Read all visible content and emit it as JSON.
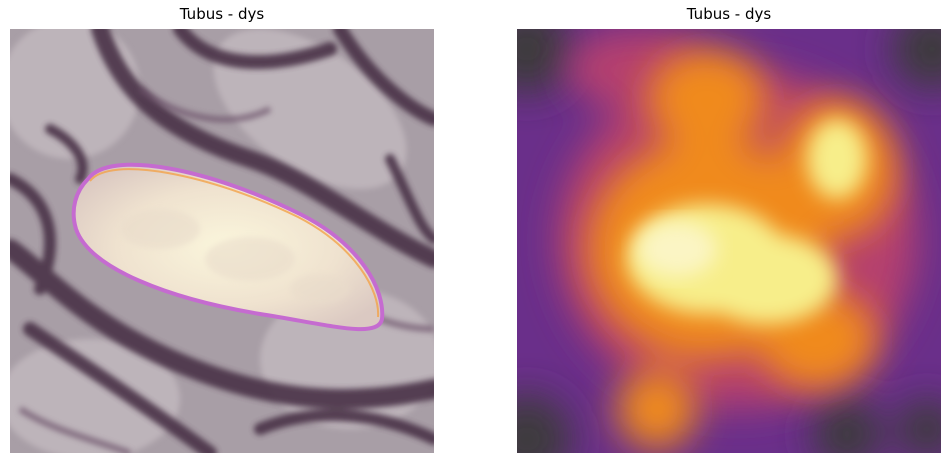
{
  "panels": [
    {
      "title": "Tubus - dys",
      "image": "tissue-patch-with-segmentation-overlay",
      "palette": {
        "background": "#a89ea6",
        "stroke": "#4a3346",
        "highlight": "#f6f0da",
        "contour": "#c56bd0"
      }
    },
    {
      "title": "Tubus - dys",
      "image": "attention-heatmap-inferno",
      "palette": {
        "dark": "#3c3a3e",
        "purple": "#6a2f8a",
        "magenta": "#b53f6e",
        "orange": "#f08a1e",
        "yellow": "#f7ee8a"
      }
    }
  ]
}
